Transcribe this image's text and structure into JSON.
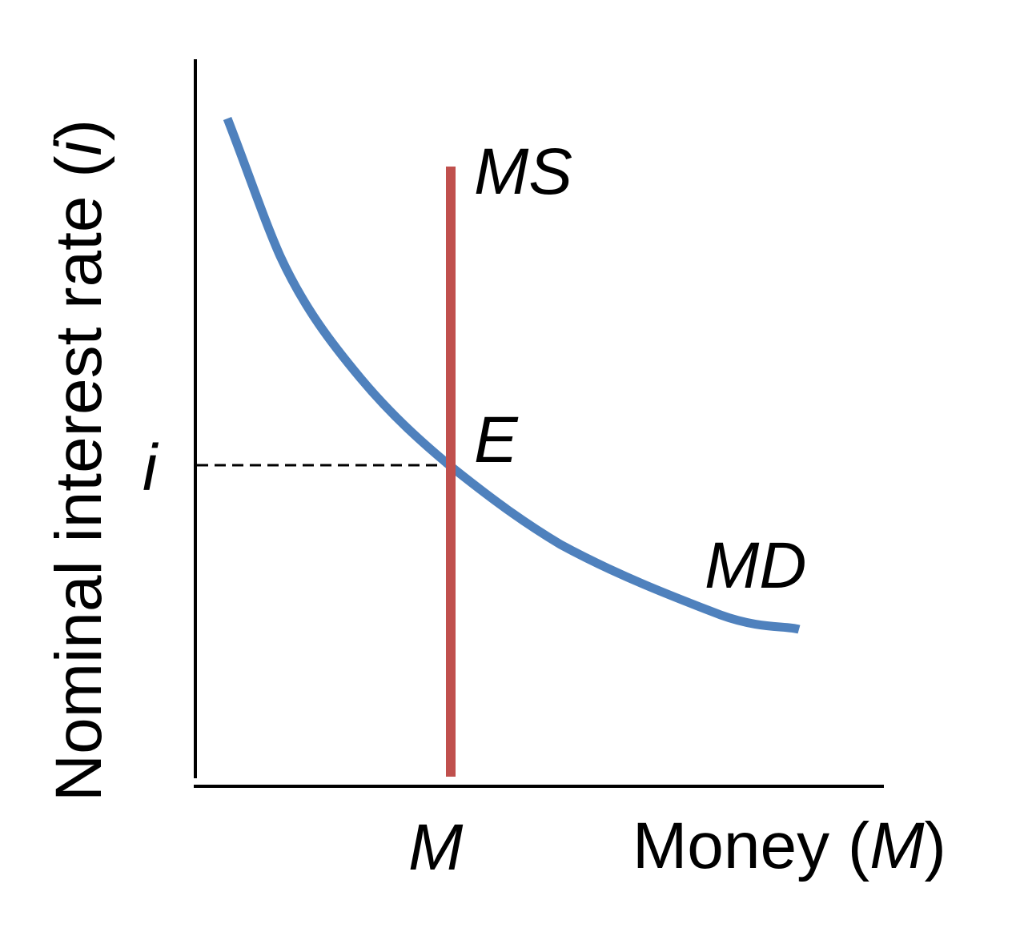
{
  "diagram": {
    "y_axis": {
      "label_parts": [
        "Nominal interest rate (",
        "i",
        ")"
      ],
      "level_label": "i"
    },
    "x_axis": {
      "label_parts": [
        "Money (",
        "M",
        ")"
      ],
      "level_label": "M"
    },
    "curves": {
      "money_supply": {
        "label": "MS"
      },
      "money_demand": {
        "label": "MD"
      }
    },
    "equilibrium": {
      "label": "E"
    }
  }
}
